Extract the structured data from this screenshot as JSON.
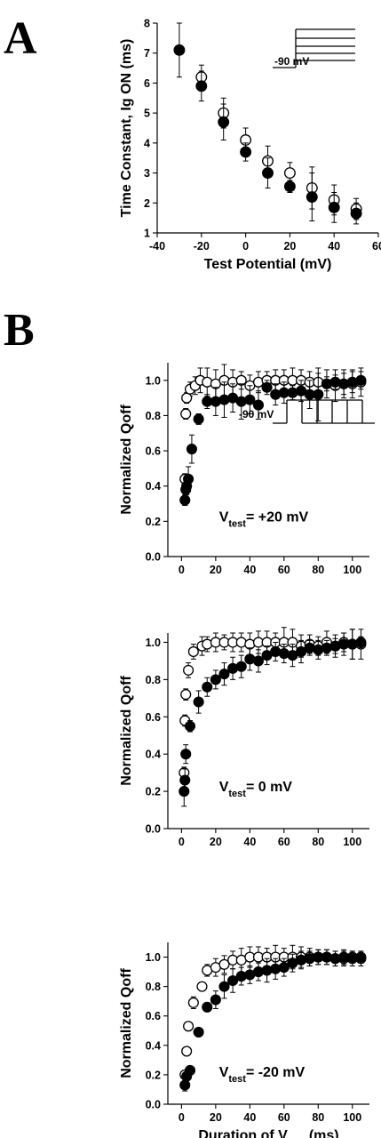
{
  "figure": {
    "panel_a_label": "A",
    "panel_b_label": "B"
  },
  "chart_data": [
    {
      "type": "scatter",
      "panel": "A",
      "xlabel": "Test Potential (mV)",
      "ylabel": "Time Constant, Ig ON (ms)",
      "xlim": [
        -40,
        60
      ],
      "ylim": [
        1,
        8
      ],
      "xticks": [
        -40,
        -20,
        0,
        20,
        40,
        60
      ],
      "yticks": [
        1,
        2,
        3,
        4,
        5,
        6,
        7,
        8
      ],
      "grid": false,
      "protocol_label": "-90 mV",
      "series": [
        {
          "marker": "open",
          "x": [
            -20,
            -10,
            0,
            10,
            20,
            30,
            40,
            50
          ],
          "y": [
            6.2,
            5.0,
            4.1,
            3.4,
            3.0,
            2.5,
            2.1,
            1.8
          ],
          "err": [
            0.4,
            0.5,
            0.4,
            0.5,
            0.35,
            0.7,
            0.5,
            0.35
          ]
        },
        {
          "marker": "filled",
          "x": [
            -30,
            -20,
            -10,
            0,
            10,
            20,
            30,
            40,
            50
          ],
          "y": [
            7.1,
            5.9,
            4.7,
            3.7,
            3.0,
            2.55,
            2.2,
            1.85,
            1.65
          ],
          "err": [
            0.9,
            0.5,
            0.6,
            0.3,
            0.5,
            0.2,
            0.8,
            0.5,
            0.35
          ]
        }
      ]
    },
    {
      "type": "scatter",
      "panel": "B1",
      "xlabel": "",
      "ylabel": "Normalized Qoff",
      "annotation": {
        "prefix": "V",
        "sub": "test",
        "suffix": "= +20 mV"
      },
      "xlim": [
        -8,
        110
      ],
      "ylim": [
        0,
        1.1
      ],
      "xticks": [
        0,
        20,
        40,
        60,
        80,
        100
      ],
      "yticks": [
        0.0,
        0.2,
        0.4,
        0.6,
        0.8,
        1.0
      ],
      "grid": false,
      "protocol_label": "-90 mV",
      "series": [
        {
          "marker": "open",
          "x": [
            2,
            2.5,
            3,
            5,
            8,
            11,
            15,
            20,
            25,
            30,
            35,
            40,
            45,
            50,
            55,
            60,
            65,
            70,
            75,
            80,
            85,
            90,
            95,
            100,
            105
          ],
          "y": [
            0.44,
            0.81,
            0.9,
            0.95,
            0.97,
            1.0,
            0.99,
            0.98,
            1.0,
            0.99,
            1.0,
            0.97,
            0.99,
            1.0,
            1.0,
            1.0,
            1.0,
            1.0,
            0.99,
            0.99,
            0.98,
            0.97,
            0.98,
            0.98,
            0.99
          ],
          "err": [
            0.03,
            0.03,
            0.03,
            0.04,
            0.05,
            0.07,
            0.08,
            0.08,
            0.09,
            0.07,
            0.05,
            0.06,
            0.06,
            0.05,
            0.06,
            0.06,
            0.07,
            0.06,
            0.06,
            0.05,
            0.08,
            0.09,
            0.08,
            0.08,
            0.08
          ]
        },
        {
          "marker": "filled",
          "x": [
            2,
            2.5,
            3,
            4,
            6,
            10,
            15,
            20,
            25,
            30,
            35,
            40,
            45,
            50,
            55,
            60,
            65,
            70,
            75,
            80,
            85,
            90,
            95,
            100,
            105
          ],
          "y": [
            0.32,
            0.38,
            0.4,
            0.44,
            0.61,
            0.78,
            0.88,
            0.88,
            0.89,
            0.9,
            0.88,
            0.89,
            0.86,
            0.96,
            0.92,
            0.93,
            0.93,
            0.94,
            0.92,
            0.92,
            0.98,
            0.99,
            0.98,
            0.99,
            1.0
          ],
          "err": [
            0.03,
            0.04,
            0.05,
            0.07,
            0.08,
            0.03,
            0.04,
            0.08,
            0.1,
            0.08,
            0.1,
            0.08,
            0.08,
            0.04,
            0.06,
            0.06,
            0.04,
            0.06,
            0.08,
            0.15,
            0.04,
            0.04,
            0.06,
            0.06,
            0.05
          ]
        }
      ]
    },
    {
      "type": "scatter",
      "panel": "B2",
      "xlabel": "",
      "ylabel": "Normalized Qoff",
      "annotation": {
        "prefix": "V",
        "sub": "test",
        "suffix": "=    0 mV"
      },
      "xlim": [
        -8,
        110
      ],
      "ylim": [
        0,
        1.05
      ],
      "xticks": [
        0,
        20,
        40,
        60,
        80,
        100
      ],
      "yticks": [
        0.0,
        0.2,
        0.4,
        0.6,
        0.8,
        1.0
      ],
      "grid": false,
      "series": [
        {
          "marker": "open",
          "x": [
            1.5,
            2,
            2.5,
            4,
            7,
            12,
            15,
            20,
            25,
            30,
            35,
            40,
            45,
            50,
            55,
            60,
            65,
            70,
            75,
            80,
            85,
            90,
            95,
            100,
            105
          ],
          "y": [
            0.3,
            0.58,
            0.72,
            0.85,
            0.95,
            0.98,
            0.99,
            1.0,
            1.0,
            1.0,
            1.0,
            0.99,
            1.0,
            1.0,
            1.0,
            1.0,
            1.0,
            0.98,
            0.99,
            0.98,
            1.0,
            0.98,
            1.0,
            0.99,
            0.99
          ],
          "err": [
            0.03,
            0.03,
            0.03,
            0.04,
            0.04,
            0.05,
            0.04,
            0.05,
            0.04,
            0.05,
            0.05,
            0.06,
            0.06,
            0.06,
            0.05,
            0.08,
            0.07,
            0.06,
            0.05,
            0.05,
            0.06,
            0.06,
            0.05,
            0.08,
            0.08
          ]
        },
        {
          "marker": "filled",
          "x": [
            1.5,
            2,
            2.5,
            5,
            10,
            15,
            20,
            25,
            30,
            35,
            40,
            45,
            50,
            55,
            60,
            65,
            70,
            75,
            80,
            85,
            90,
            95,
            100,
            105
          ],
          "y": [
            0.2,
            0.26,
            0.4,
            0.55,
            0.68,
            0.76,
            0.8,
            0.83,
            0.86,
            0.87,
            0.91,
            0.9,
            0.93,
            0.95,
            0.94,
            0.93,
            0.95,
            0.97,
            0.96,
            0.97,
            0.98,
            0.99,
            0.99,
            1.0
          ],
          "err": [
            0.08,
            0.06,
            0.05,
            0.03,
            0.06,
            0.05,
            0.05,
            0.06,
            0.06,
            0.06,
            0.06,
            0.06,
            0.05,
            0.05,
            0.05,
            0.06,
            0.06,
            0.04,
            0.05,
            0.04,
            0.04,
            0.06,
            0.08,
            0.03
          ]
        }
      ]
    },
    {
      "type": "scatter",
      "panel": "B3",
      "xlabel": "Duration of V",
      "xlabel_sub": "test",
      "xlabel_suffix": " (ms)",
      "ylabel": "Normalized Qoff",
      "annotation": {
        "prefix": "V",
        "sub": "test",
        "suffix": "= -20 mV"
      },
      "xlim": [
        -8,
        110
      ],
      "ylim": [
        0,
        1.1
      ],
      "xticks": [
        0,
        20,
        40,
        60,
        80,
        100
      ],
      "yticks": [
        0.0,
        0.2,
        0.4,
        0.6,
        0.8,
        1.0
      ],
      "grid": false,
      "series": [
        {
          "marker": "open",
          "x": [
            2,
            3,
            4,
            7,
            12,
            15,
            20,
            25,
            30,
            35,
            40,
            45,
            50,
            55,
            60,
            65,
            70,
            75,
            80,
            85,
            90,
            95,
            100,
            105
          ],
          "y": [
            0.2,
            0.36,
            0.53,
            0.69,
            0.8,
            0.91,
            0.93,
            0.95,
            0.98,
            0.98,
            1.0,
            1.0,
            1.0,
            1.0,
            1.0,
            1.0,
            1.0,
            1.0,
            1.0,
            1.0,
            0.99,
            0.99,
            0.99,
            0.99
          ],
          "err": [
            0.03,
            0.03,
            0.03,
            0.04,
            0.03,
            0.04,
            0.06,
            0.06,
            0.06,
            0.08,
            0.07,
            0.07,
            0.06,
            0.08,
            0.06,
            0.08,
            0.07,
            0.06,
            0.05,
            0.05,
            0.05,
            0.05,
            0.05,
            0.05
          ]
        },
        {
          "marker": "filled",
          "x": [
            2,
            3,
            5,
            10,
            15,
            20,
            25,
            30,
            35,
            40,
            45,
            50,
            55,
            60,
            65,
            70,
            75,
            80,
            85,
            90,
            95,
            100,
            105
          ],
          "y": [
            0.13,
            0.19,
            0.23,
            0.49,
            0.66,
            0.71,
            0.8,
            0.84,
            0.87,
            0.88,
            0.9,
            0.91,
            0.92,
            0.93,
            0.96,
            0.98,
            0.99,
            1.0,
            1.0,
            0.99,
            1.0,
            1.0,
            1.0
          ],
          "err": [
            0.04,
            0.03,
            0.03,
            0.02,
            0.03,
            0.06,
            0.08,
            0.08,
            0.06,
            0.06,
            0.06,
            0.08,
            0.07,
            0.06,
            0.06,
            0.06,
            0.05,
            0.05,
            0.05,
            0.05,
            0.05,
            0.04,
            0.04
          ]
        }
      ]
    }
  ]
}
